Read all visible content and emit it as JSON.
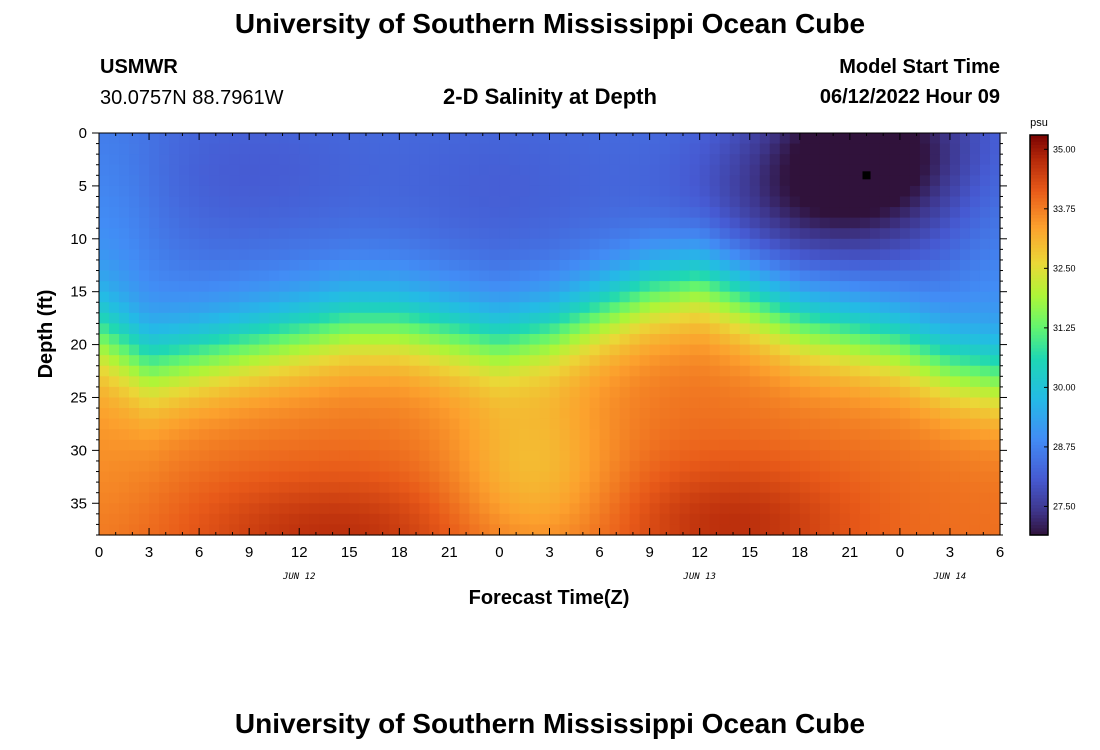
{
  "header": {
    "title_top": "University of Southern Mississippi Ocean Cube",
    "station_name": "USMWR",
    "station_coords": "30.0757N  88.7961W",
    "chart_heading": "2-D Salinity at Depth",
    "model_label": "Model Start Time",
    "model_time": "06/12/2022 Hour 09",
    "title_bottom": "University of Southern Mississippi Ocean Cube"
  },
  "chart_data": {
    "type": "heatmap",
    "title": "2-D Salinity at Depth",
    "xlabel": "Forecast Time(Z)",
    "ylabel": "Depth (ft)",
    "x_range_hours": [
      0,
      54
    ],
    "y_range_ft": [
      0,
      38
    ],
    "x_ticks": [
      "0",
      "3",
      "6",
      "9",
      "12",
      "15",
      "18",
      "21",
      "0",
      "3",
      "6",
      "9",
      "12",
      "15",
      "18",
      "21",
      "0",
      "3",
      "6"
    ],
    "y_ticks": [
      "0",
      "5",
      "10",
      "15",
      "20",
      "25",
      "30",
      "35"
    ],
    "y_tick_values": [
      0,
      5,
      10,
      15,
      20,
      25,
      30,
      35
    ],
    "date_labels": [
      {
        "text": "JUN 12",
        "hour": 12
      },
      {
        "text": "JUN 13",
        "hour": 36
      },
      {
        "text": "JUN 14",
        "hour": 51
      }
    ],
    "colorbar": {
      "unit": "psu",
      "min": 26.9,
      "max": 35.3,
      "tick_labels": [
        "35.00",
        "33.75",
        "32.50",
        "31.25",
        "30.00",
        "28.75",
        "27.50"
      ],
      "tick_values": [
        35.0,
        33.75,
        32.5,
        31.25,
        30.0,
        28.75,
        27.5
      ]
    },
    "marker": {
      "hour": 46,
      "depth_ft": 4
    },
    "halocline_depth_ft": [
      {
        "hour": 0,
        "depth": 17
      },
      {
        "hour": 3,
        "depth": 20
      },
      {
        "hour": 6,
        "depth": 19
      },
      {
        "hour": 9,
        "depth": 18
      },
      {
        "hour": 12,
        "depth": 17
      },
      {
        "hour": 15,
        "depth": 16
      },
      {
        "hour": 18,
        "depth": 16
      },
      {
        "hour": 21,
        "depth": 17
      },
      {
        "hour": 24,
        "depth": 18
      },
      {
        "hour": 27,
        "depth": 17
      },
      {
        "hour": 30,
        "depth": 15
      },
      {
        "hour": 33,
        "depth": 13
      },
      {
        "hour": 36,
        "depth": 12
      },
      {
        "hour": 39,
        "depth": 14
      },
      {
        "hour": 42,
        "depth": 16
      },
      {
        "hour": 45,
        "depth": 17
      },
      {
        "hour": 48,
        "depth": 18
      },
      {
        "hour": 51,
        "depth": 20
      },
      {
        "hour": 54,
        "depth": 21
      }
    ]
  }
}
